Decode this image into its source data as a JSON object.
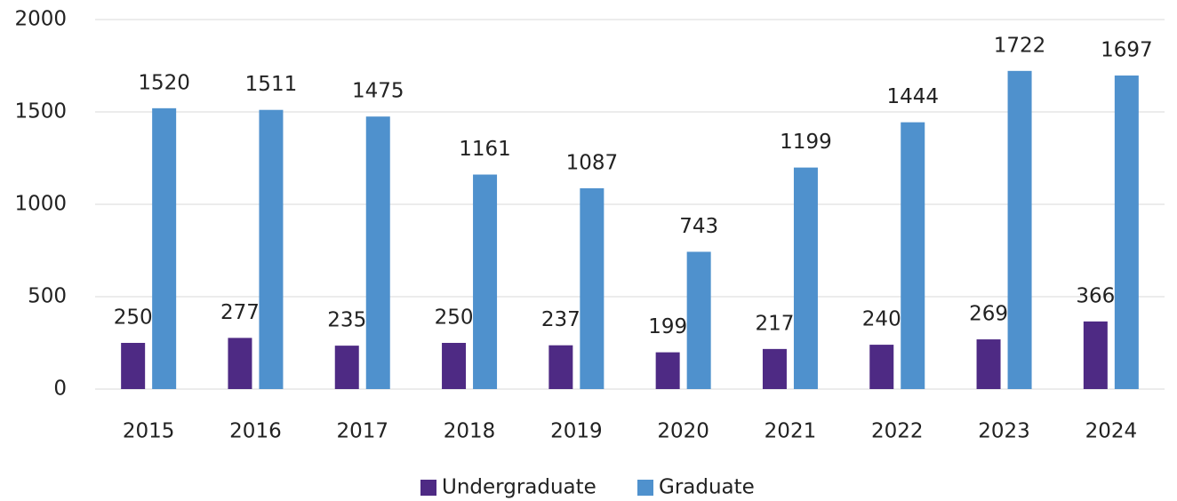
{
  "chart_data": {
    "type": "bar",
    "categories": [
      "2015",
      "2016",
      "2017",
      "2018",
      "2019",
      "2020",
      "2021",
      "2022",
      "2023",
      "2024"
    ],
    "series": [
      {
        "name": "Undergraduate",
        "color": "#4e2a84",
        "values": [
          250,
          277,
          235,
          250,
          237,
          199,
          217,
          240,
          269,
          366
        ]
      },
      {
        "name": "Graduate",
        "color": "#4f91cd",
        "values": [
          1520,
          1511,
          1475,
          1161,
          1087,
          743,
          1199,
          1444,
          1722,
          1697
        ]
      }
    ],
    "ylim": [
      0,
      2000
    ],
    "yticks": [
      0,
      500,
      1000,
      1500,
      2000
    ],
    "grid": true,
    "legend": "bottom"
  }
}
